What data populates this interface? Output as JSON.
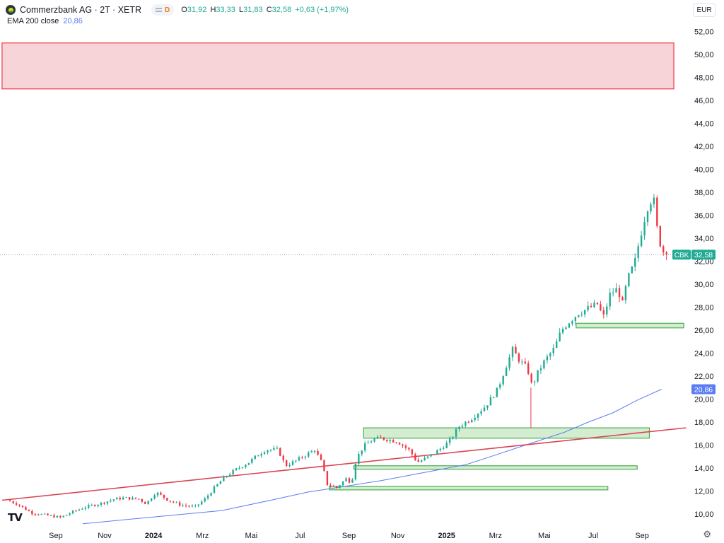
{
  "header": {
    "title": "Commerzbank AG · 2T · XETR",
    "interval_badge": "D",
    "ohlc": [
      {
        "key": "O",
        "value": "31,92"
      },
      {
        "key": "H",
        "value": "33,33"
      },
      {
        "key": "L",
        "value": "31,83"
      },
      {
        "key": "C",
        "value": "32,58"
      },
      {
        "key": "",
        "value": "+0,63 (+1,97%)"
      }
    ],
    "ema_label": "EMA 200 close",
    "ema_value": "20,86",
    "currency": "EUR",
    "platform_logo": "TV"
  },
  "colors": {
    "up": "#22ab94",
    "down": "#f23645",
    "ema": "#5b7cf5",
    "trendline": "#d94452",
    "zone_red_fill": "#f7d4d8",
    "zone_green_fill": "#d4ecd0",
    "zone_green_stroke": "#4caf50"
  },
  "icons": {
    "settings": "gear-icon",
    "logo": "commerzbank-logo-icon"
  },
  "chart_data": {
    "type": "candlestick",
    "title": "Commerzbank AG · 2T · XETR",
    "ylim": [
      9.2,
      53.5
    ],
    "y_ticks": [
      "10,00",
      "12,00",
      "14,00",
      "16,00",
      "18,00",
      "20,00",
      "22,00",
      "24,00",
      "26,00",
      "28,00",
      "30,00",
      "32,00",
      "34,00",
      "36,00",
      "38,00",
      "40,00",
      "42,00",
      "44,00",
      "46,00",
      "48,00",
      "50,00",
      "52,00"
    ],
    "x_ticks": [
      {
        "label": "Sep",
        "t": 0.2
      },
      {
        "label": "Nov",
        "t": 2.2
      },
      {
        "label": "2024",
        "t": 4.2
      },
      {
        "label": "Mrz",
        "t": 6.2
      },
      {
        "label": "Mai",
        "t": 8.2
      },
      {
        "label": "Jul",
        "t": 10.2
      },
      {
        "label": "Sep",
        "t": 12.2
      },
      {
        "label": "Nov",
        "t": 14.2
      },
      {
        "label": "2025",
        "t": 16.2
      },
      {
        "label": "Mrz",
        "t": 18.2
      },
      {
        "label": "Mai",
        "t": 20.2
      },
      {
        "label": "Jul",
        "t": 22.2
      },
      {
        "label": "Sep",
        "t": 24.2
      }
    ],
    "price_path": [
      [
        -1.8,
        11.2
      ],
      [
        -1.4,
        10.9
      ],
      [
        -0.8,
        10.1
      ],
      [
        -0.2,
        9.9
      ],
      [
        0.4,
        9.7
      ],
      [
        0.9,
        10.2
      ],
      [
        1.4,
        10.6
      ],
      [
        2.0,
        10.9
      ],
      [
        2.6,
        11.3
      ],
      [
        3.0,
        11.4
      ],
      [
        3.6,
        11.3
      ],
      [
        3.9,
        10.9
      ],
      [
        4.3,
        11.9
      ],
      [
        4.8,
        11.2
      ],
      [
        5.3,
        10.8
      ],
      [
        5.9,
        10.6
      ],
      [
        6.3,
        11.3
      ],
      [
        6.7,
        12.3
      ],
      [
        7.1,
        13.2
      ],
      [
        7.6,
        13.9
      ],
      [
        8.1,
        14.5
      ],
      [
        8.5,
        15.2
      ],
      [
        8.8,
        15.6
      ],
      [
        9.3,
        15.6
      ],
      [
        9.6,
        14.2
      ],
      [
        10.0,
        14.6
      ],
      [
        10.4,
        15.1
      ],
      [
        10.8,
        15.6
      ],
      [
        11.1,
        14.4
      ],
      [
        11.3,
        12.6
      ],
      [
        11.7,
        12.3
      ],
      [
        12.1,
        13.1
      ],
      [
        12.3,
        12.7
      ],
      [
        12.5,
        14.8
      ],
      [
        12.8,
        15.9
      ],
      [
        13.2,
        16.5
      ],
      [
        13.5,
        16.6
      ],
      [
        14.2,
        16.3
      ],
      [
        14.7,
        15.5
      ],
      [
        15.0,
        14.5
      ],
      [
        15.4,
        14.9
      ],
      [
        15.9,
        15.6
      ],
      [
        16.3,
        16.3
      ],
      [
        16.7,
        17.6
      ],
      [
        17.2,
        18.3
      ],
      [
        17.8,
        19.4
      ],
      [
        18.3,
        20.9
      ],
      [
        18.6,
        22.7
      ],
      [
        18.9,
        24.3
      ],
      [
        19.2,
        23.3
      ],
      [
        19.5,
        22.7
      ],
      [
        19.7,
        21.1
      ],
      [
        19.9,
        22.2
      ],
      [
        20.2,
        23.3
      ],
      [
        20.6,
        24.4
      ],
      [
        20.9,
        26.0
      ],
      [
        21.2,
        26.7
      ],
      [
        21.6,
        27.5
      ],
      [
        22.0,
        27.9
      ],
      [
        22.4,
        28.3
      ],
      [
        22.6,
        27.0
      ],
      [
        22.9,
        29.2
      ],
      [
        23.2,
        29.6
      ],
      [
        23.4,
        28.3
      ],
      [
        23.6,
        30.4
      ],
      [
        23.9,
        31.9
      ],
      [
        24.1,
        33.9
      ],
      [
        24.3,
        35.7
      ],
      [
        24.5,
        37.3
      ],
      [
        24.7,
        37.2
      ],
      [
        24.8,
        35.0
      ],
      [
        25.0,
        33.0
      ],
      [
        25.2,
        32.58
      ]
    ],
    "candle_count": 210,
    "seed": 7,
    "last_price": 32.58,
    "last_label": "CBK",
    "last_value_text": "32,58",
    "ema": {
      "name": "EMA 200 close",
      "value_text": "20,86",
      "points": [
        [
          1.3,
          9.15
        ],
        [
          3.0,
          9.5
        ],
        [
          5.0,
          9.9
        ],
        [
          7.0,
          10.3
        ],
        [
          9.0,
          11.2
        ],
        [
          10.5,
          11.9
        ],
        [
          12.0,
          12.4
        ],
        [
          13.5,
          12.9
        ],
        [
          15.0,
          13.5
        ],
        [
          16.0,
          13.9
        ],
        [
          17.0,
          14.3
        ],
        [
          18.0,
          15.0
        ],
        [
          19.0,
          15.7
        ],
        [
          20.0,
          16.4
        ],
        [
          21.0,
          17.1
        ],
        [
          22.0,
          18.0
        ],
        [
          23.0,
          18.8
        ],
        [
          24.0,
          19.9
        ],
        [
          25.0,
          20.86
        ]
      ]
    },
    "trendline": {
      "start": [
        -2.0,
        11.2
      ],
      "end": [
        26.0,
        17.5
      ]
    },
    "zones": [
      {
        "kind": "resistance",
        "t0": -2.0,
        "t1": 25.5,
        "y0": 47.0,
        "y1": 51.0
      },
      {
        "kind": "support",
        "t0": 21.5,
        "t1": 27.5,
        "y0": 26.2,
        "y1": 26.6
      },
      {
        "kind": "support",
        "t0": 12.8,
        "t1": 24.5,
        "y0": 16.6,
        "y1": 17.5
      },
      {
        "kind": "support",
        "t0": 12.4,
        "t1": 24.0,
        "y0": 13.9,
        "y1": 14.2
      },
      {
        "kind": "support",
        "t0": 11.4,
        "t1": 22.8,
        "y0": 12.1,
        "y1": 12.4
      }
    ]
  }
}
